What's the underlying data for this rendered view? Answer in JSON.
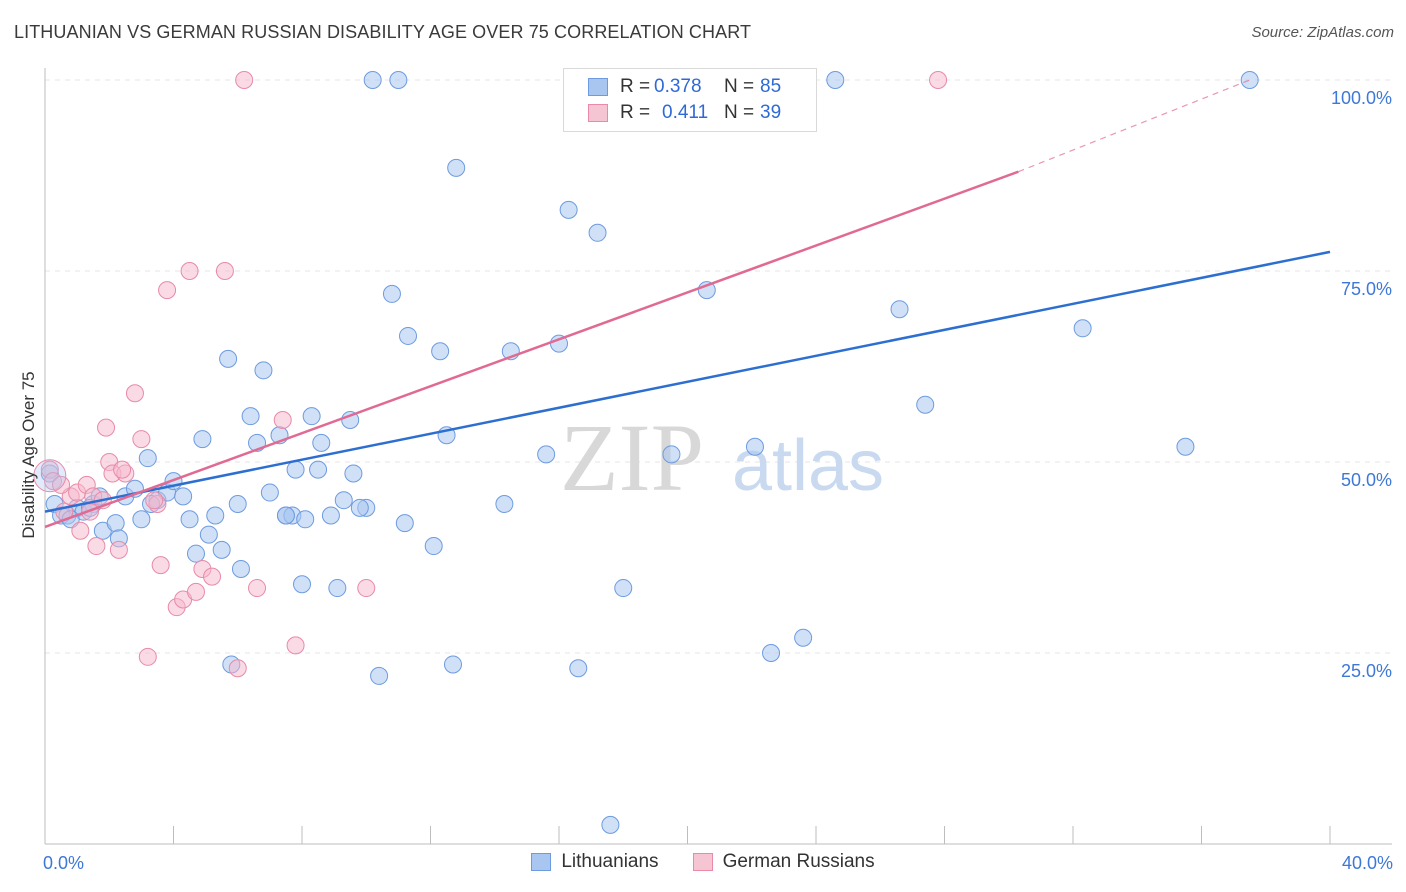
{
  "header": {
    "title": "LITHUANIAN VS GERMAN RUSSIAN DISABILITY AGE OVER 75 CORRELATION CHART",
    "source": "Source: ZipAtlas.com"
  },
  "legend": {
    "rows": [
      {
        "r_label": "R =",
        "r_value": "0.378",
        "n_label": "N =",
        "n_value": "85"
      },
      {
        "r_label": "R =",
        "r_value": "0.411",
        "n_label": "N =",
        "n_value": "39"
      }
    ]
  },
  "bottom_legend": {
    "items": [
      {
        "label": "Lithuanians"
      },
      {
        "label": "German Russians"
      }
    ]
  },
  "watermark": {
    "zip": "ZIP",
    "atlas": "atlas"
  },
  "chart_data": {
    "type": "scatter",
    "title": "LITHUANIAN VS GERMAN RUSSIAN DISABILITY AGE OVER 75 CORRELATION CHART",
    "xlabel": "",
    "ylabel": "Disability Age Over 75",
    "xlim": [
      0,
      40
    ],
    "ylim": [
      0,
      103
    ],
    "x_tick_labels": [
      "0.0%",
      "40.0%"
    ],
    "y_ticks": [
      25,
      50,
      75,
      100
    ],
    "y_tick_labels": [
      "25.0%",
      "50.0%",
      "75.0%",
      "100.0%"
    ],
    "grid": true,
    "colors": {
      "lithuanians_fill": "#a9c6f0",
      "lithuanians_stroke": "#6d9be0",
      "lithuanians_line": "#2d6fd0",
      "german_fill": "#f5b8cb",
      "german_stroke": "#e88aa8",
      "german_line": "#e06a92",
      "axis_text": "#3d78d8"
    },
    "series": [
      {
        "name": "Lithuanians",
        "R": 0.378,
        "N": 85,
        "trend": {
          "x0": 0,
          "y0": 43.5,
          "x1": 40,
          "y1": 77.5
        },
        "points": [
          [
            0.15,
            48.5
          ],
          [
            0.3,
            44.5
          ],
          [
            0.5,
            43
          ],
          [
            0.7,
            43
          ],
          [
            1.0,
            44
          ],
          [
            1.2,
            43.5
          ],
          [
            1.5,
            44.5
          ],
          [
            1.8,
            41
          ],
          [
            2.2,
            42
          ],
          [
            2.5,
            45.5
          ],
          [
            2.8,
            46.5
          ],
          [
            3.0,
            42.5
          ],
          [
            3.2,
            50.5
          ],
          [
            3.5,
            45
          ],
          [
            3.8,
            46
          ],
          [
            4.0,
            47.5
          ],
          [
            4.3,
            45.5
          ],
          [
            4.5,
            42.5
          ],
          [
            4.7,
            38
          ],
          [
            4.9,
            53
          ],
          [
            5.1,
            40.5
          ],
          [
            5.3,
            43
          ],
          [
            5.5,
            38.5
          ],
          [
            5.7,
            63.5
          ],
          [
            6.0,
            44.5
          ],
          [
            6.1,
            36
          ],
          [
            6.4,
            56
          ],
          [
            6.6,
            52.5
          ],
          [
            6.8,
            62
          ],
          [
            7.0,
            46
          ],
          [
            7.3,
            53.5
          ],
          [
            7.5,
            43
          ],
          [
            7.7,
            43
          ],
          [
            7.8,
            49
          ],
          [
            8.0,
            34
          ],
          [
            8.1,
            42.5
          ],
          [
            8.3,
            56
          ],
          [
            8.5,
            49
          ],
          [
            8.6,
            52.5
          ],
          [
            8.9,
            43
          ],
          [
            9.1,
            33.5
          ],
          [
            9.3,
            45
          ],
          [
            9.5,
            55.5
          ],
          [
            9.6,
            48.5
          ],
          [
            10.0,
            44
          ],
          [
            10.2,
            100
          ],
          [
            10.4,
            22
          ],
          [
            10.8,
            72
          ],
          [
            11.0,
            100
          ],
          [
            11.2,
            42
          ],
          [
            11.3,
            66.5
          ],
          [
            12.1,
            39
          ],
          [
            12.3,
            64.5
          ],
          [
            12.5,
            53.5
          ],
          [
            12.7,
            23.5
          ],
          [
            12.8,
            88.5
          ],
          [
            14.3,
            44.5
          ],
          [
            14.5,
            64.5
          ],
          [
            15.6,
            51
          ],
          [
            16.0,
            65.5
          ],
          [
            16.3,
            83
          ],
          [
            16.6,
            23
          ],
          [
            17.2,
            80
          ],
          [
            17.6,
            2.5
          ],
          [
            18.0,
            33.5
          ],
          [
            19.5,
            51
          ],
          [
            20.6,
            72.5
          ],
          [
            21.5,
            100
          ],
          [
            22.1,
            52
          ],
          [
            22.6,
            25
          ],
          [
            23.6,
            27
          ],
          [
            24.6,
            100
          ],
          [
            26.6,
            70
          ],
          [
            27.4,
            57.5
          ],
          [
            32.3,
            67.5
          ],
          [
            35.5,
            52
          ],
          [
            37.5,
            100
          ],
          [
            1.4,
            44
          ],
          [
            2.3,
            40
          ],
          [
            3.3,
            44.5
          ],
          [
            5.8,
            23.5
          ],
          [
            7.5,
            43
          ],
          [
            0.8,
            42.5
          ],
          [
            1.7,
            45.5
          ],
          [
            9.8,
            44
          ]
        ]
      },
      {
        "name": "German Russians",
        "R": 0.411,
        "N": 39,
        "trend": {
          "x0": 0,
          "y0": 41.5,
          "x1": 30.3,
          "y1": 88,
          "dash_x1": 37.5,
          "dash_y1": 100
        },
        "points": [
          [
            0.15,
            49
          ],
          [
            0.25,
            47.5
          ],
          [
            0.6,
            43.5
          ],
          [
            0.8,
            45.5
          ],
          [
            1.0,
            46
          ],
          [
            1.1,
            41
          ],
          [
            1.3,
            47
          ],
          [
            1.5,
            45.5
          ],
          [
            1.6,
            39
          ],
          [
            1.8,
            45
          ],
          [
            2.0,
            50
          ],
          [
            2.1,
            48.5
          ],
          [
            2.3,
            38.5
          ],
          [
            2.5,
            48.5
          ],
          [
            2.8,
            59
          ],
          [
            3.0,
            53
          ],
          [
            3.2,
            24.5
          ],
          [
            3.5,
            44.5
          ],
          [
            3.6,
            36.5
          ],
          [
            3.8,
            72.5
          ],
          [
            4.1,
            31
          ],
          [
            4.3,
            32
          ],
          [
            4.5,
            75
          ],
          [
            4.7,
            33
          ],
          [
            4.9,
            36
          ],
          [
            5.2,
            35
          ],
          [
            5.6,
            75
          ],
          [
            6.0,
            23
          ],
          [
            6.6,
            33.5
          ],
          [
            7.4,
            55.5
          ],
          [
            7.8,
            26
          ],
          [
            10.0,
            33.5
          ],
          [
            6.2,
            100
          ],
          [
            27.8,
            100
          ],
          [
            1.4,
            43.5
          ],
          [
            2.4,
            49
          ],
          [
            3.4,
            45
          ],
          [
            0.5,
            47
          ],
          [
            1.9,
            54.5
          ]
        ]
      }
    ]
  }
}
